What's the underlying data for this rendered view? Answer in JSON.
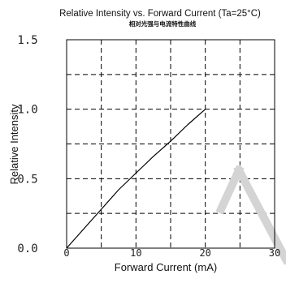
{
  "chart_data": {
    "type": "line",
    "title": "Relative Intensity vs. Forward Current (Ta=25°C)",
    "subtitle": "相对光强与电流特性曲线",
    "xlabel": "Forward Current (mA)",
    "ylabel": "Relative Intensity",
    "xlim": [
      0,
      30
    ],
    "ylim": [
      0,
      1.5
    ],
    "x_ticks": [
      "0",
      "10",
      "20",
      "30"
    ],
    "y_ticks": [
      "0.0",
      "0.5",
      "1.0",
      "1.5"
    ],
    "grid": true,
    "series": [
      {
        "x": [
          0,
          2.5,
          5,
          7.5,
          10,
          12.5,
          15,
          17.5,
          20
        ],
        "y": [
          0,
          0.14,
          0.28,
          0.42,
          0.54,
          0.66,
          0.77,
          0.89,
          1.0
        ]
      }
    ],
    "line_color": "#000000",
    "watermark_color": "#d4d4d4"
  }
}
